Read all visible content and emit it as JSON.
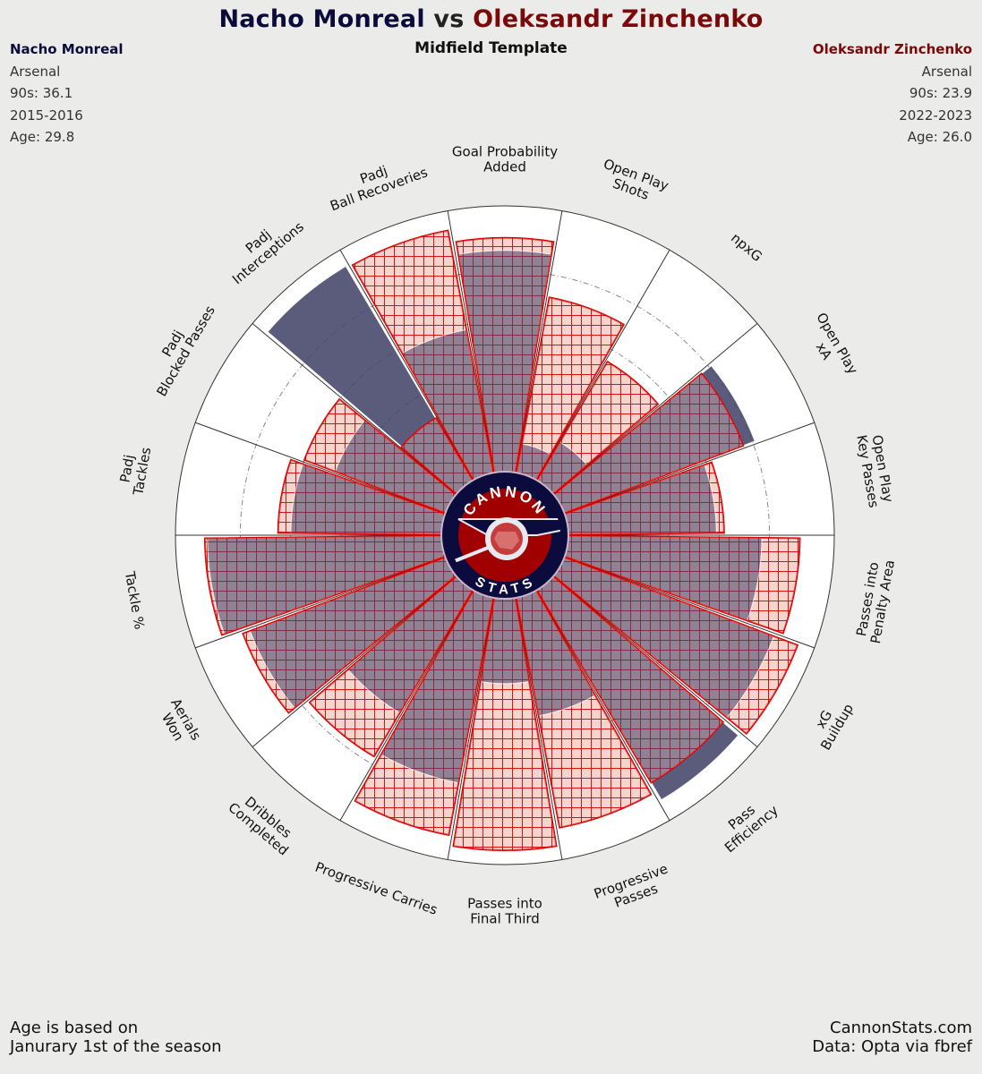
{
  "header": {
    "player1": "Nacho Monreal",
    "vs": "vs",
    "player2": "Oleksandr Zinchenko",
    "subtitle": "Midfield Template"
  },
  "left_info": {
    "name": "Nacho Monreal",
    "team": "Arsenal",
    "nineties": "90s: 36.1",
    "season": "2015-2016",
    "age": "Age: 29.8"
  },
  "right_info": {
    "name": "Oleksandr Zinchenko",
    "team": "Arsenal",
    "nineties": "90s: 23.9",
    "season": "2022-2023",
    "age": "Age: 26.0"
  },
  "logo": {
    "top_text": "CANNON",
    "bottom_text": "STATS"
  },
  "footer": {
    "left_line1": "Age is based on",
    "left_line2": "Janurary 1st of the season",
    "right_line1": "CannonStats.com",
    "right_line2": "Data: Opta via fbref"
  },
  "colors": {
    "player1": "#44446a",
    "player2_fill": "#f4d4cc",
    "player2_edge": "#d90000",
    "background": "#ebebe9"
  },
  "chart_data": {
    "type": "radar",
    "subtype": "pizza-comparison",
    "title": "Nacho Monreal vs Oleksandr Zinchenko",
    "subtitle": "Midfield Template",
    "ylim": [
      0,
      100
    ],
    "categories": [
      [
        "Goal Probability",
        "Added"
      ],
      [
        "Open Play",
        "Shots"
      ],
      [
        "npxG"
      ],
      [
        "Open Play",
        "xA"
      ],
      [
        "Open Play",
        "Key Passes"
      ],
      [
        "Passes into",
        "Penalty Area"
      ],
      [
        "xG",
        "Buildup"
      ],
      [
        "Pass",
        "Efficiency"
      ],
      [
        "Progressive",
        "Passes"
      ],
      [
        "Passes into",
        "Final Third"
      ],
      [
        "Progressive Carries"
      ],
      [
        "Dribbles",
        "Completed"
      ],
      [
        "Aerials",
        "Won"
      ],
      [
        "Tackle %"
      ],
      [
        "Padj",
        "Tackles"
      ],
      [
        "Padj",
        "Blocked Passes"
      ],
      [
        "Padj",
        "Interceptions"
      ],
      [
        "Padj",
        "Ball Recoveries"
      ]
    ],
    "series": [
      {
        "name": "Nacho Monreal",
        "values": [
          88,
          12,
          18,
          81,
          59,
          77,
          89,
          97,
          48,
          34,
          75,
          57,
          83,
          93,
          60,
          47,
          99,
          58
        ]
      },
      {
        "name": "Oleksandr Zinchenko",
        "values": [
          93,
          71,
          55,
          76,
          62,
          92,
          99,
          89,
          93,
          100,
          96,
          77,
          86,
          94,
          65,
          60,
          29,
          98
        ]
      }
    ]
  }
}
